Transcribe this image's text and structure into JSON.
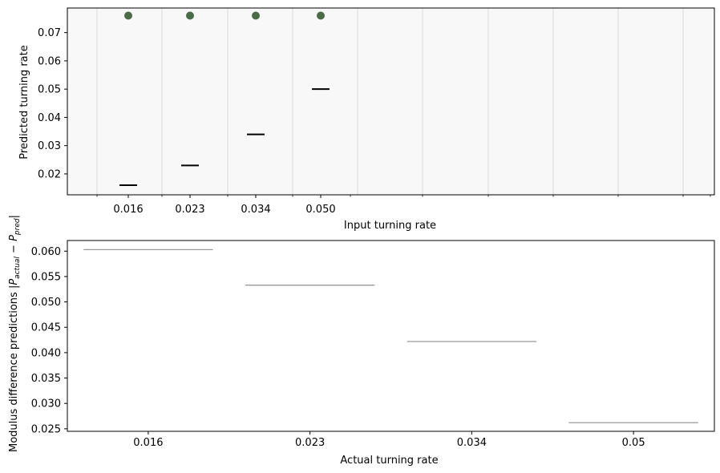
{
  "chart_data": [
    {
      "type": "scatter",
      "title": "",
      "xlabel": "Input turning rate",
      "ylabel": "Predicted turning rate",
      "x_tick_labels": [
        "0.016",
        "0.023",
        "0.034",
        "0.050"
      ],
      "ylim": [
        0.0126,
        0.0787
      ],
      "y_ticks": [
        "0.02",
        "0.03",
        "0.04",
        "0.05",
        "0.06",
        "0.07"
      ],
      "background": "#f8f8f8",
      "point_color": "#4a6b46",
      "grid": "vertical",
      "series": [
        {
          "x": [
            "0.016",
            "0.023",
            "0.034",
            "0.050"
          ],
          "predicted": [
            0.076,
            0.076,
            0.076,
            0.076
          ],
          "input_markers": [
            0.016,
            0.023,
            0.034,
            0.05
          ]
        }
      ]
    },
    {
      "type": "bar",
      "title": "",
      "xlabel": "Actual turning rate",
      "ylabel": "Modulus difference predictions |P_actual − P_pred|",
      "ylabel_parts": {
        "prefix": "Modulus difference predictions |",
        "p": "P",
        "sub1": "actual",
        "minus": " − ",
        "sub2": "pred",
        "suffix": "|"
      },
      "categories": [
        "0.016",
        "0.023",
        "0.034",
        "0.05"
      ],
      "values": [
        0.0603,
        0.0533,
        0.0422,
        0.0262
      ],
      "ylim": [
        0.0245,
        0.0621
      ],
      "y_ticks": [
        "0.025",
        "0.030",
        "0.035",
        "0.040",
        "0.045",
        "0.050",
        "0.055",
        "0.060"
      ],
      "line_color": "#999999"
    }
  ]
}
